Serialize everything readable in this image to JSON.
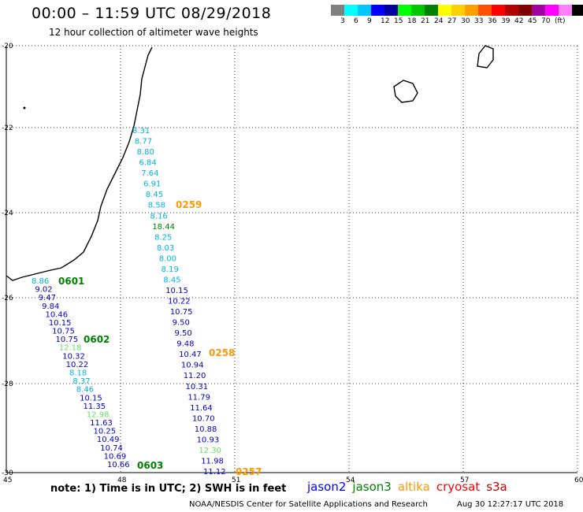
{
  "title": "00:00 – 11:59 UTC 08/29/2018",
  "subtitle": "12 hour collection of altimeter wave heights",
  "scale": {
    "colors": [
      "#808080",
      "#00ffff",
      "#00c8ff",
      "#0000ff",
      "#0000a0",
      "#00ff00",
      "#00c800",
      "#008000",
      "#ffff00",
      "#ffd000",
      "#ffa000",
      "#ff5000",
      "#ff0000",
      "#b00000",
      "#800000",
      "#a000a0",
      "#ff00ff",
      "#ff80ff",
      "#000000"
    ],
    "labels": [
      "3",
      "6",
      "9",
      "12",
      "15",
      "18",
      "21",
      "24",
      "27",
      "30",
      "33",
      "36",
      "39",
      "42",
      "45",
      "70",
      "(ft)"
    ]
  },
  "axes": {
    "lat_labels": [
      "-20",
      "-22",
      "-24",
      "-26",
      "-28",
      "-30"
    ],
    "lon_labels": [
      "45",
      "48",
      "51",
      "54",
      "57",
      "60"
    ]
  },
  "passes": [
    {
      "id": "0601",
      "color": "#008000"
    },
    {
      "id": "0602",
      "color": "#008000"
    },
    {
      "id": "0603",
      "color": "#008000"
    },
    {
      "id": "0259",
      "color": "#ff9900"
    },
    {
      "id": "0258",
      "color": "#ff9900"
    },
    {
      "id": "0257",
      "color": "#ff9900"
    }
  ],
  "tracks": {
    "east": [
      {
        "v": "8.31",
        "c": "#00b4dc"
      },
      {
        "v": "8.77",
        "c": "#00b4dc"
      },
      {
        "v": "8.80",
        "c": "#00b4dc"
      },
      {
        "v": "6.84",
        "c": "#00b4dc"
      },
      {
        "v": "7.64",
        "c": "#00b4dc"
      },
      {
        "v": "6.91",
        "c": "#00b4dc"
      },
      {
        "v": "8.45",
        "c": "#00b4dc"
      },
      {
        "v": "8.58",
        "c": "#00b4dc"
      },
      {
        "v": "8.16",
        "c": "#00b4dc"
      },
      {
        "v": "18.44",
        "c": "#008000"
      },
      {
        "v": "8.25",
        "c": "#00b4dc"
      },
      {
        "v": "8.03",
        "c": "#00b4dc"
      },
      {
        "v": "8.00",
        "c": "#00b4dc"
      },
      {
        "v": "8.19",
        "c": "#00b4dc"
      },
      {
        "v": "8.45",
        "c": "#00b4dc"
      },
      {
        "v": "10.15",
        "c": "#0000c8"
      },
      {
        "v": "10.22",
        "c": "#0000c8"
      },
      {
        "v": "10.75",
        "c": "#0000c8"
      },
      {
        "v": "9.50",
        "c": "#0000c8"
      },
      {
        "v": "9.50",
        "c": "#0000c8"
      },
      {
        "v": "9.48",
        "c": "#0000c8"
      },
      {
        "v": "10.47",
        "c": "#0000c8"
      },
      {
        "v": "10.94",
        "c": "#0000c8"
      },
      {
        "v": "11.20",
        "c": "#0000c8"
      },
      {
        "v": "10.31",
        "c": "#0000c8"
      },
      {
        "v": "11.79",
        "c": "#0000c8"
      },
      {
        "v": "11.64",
        "c": "#0000c8"
      },
      {
        "v": "10.70",
        "c": "#0000c8"
      },
      {
        "v": "10.88",
        "c": "#0000c8"
      },
      {
        "v": "10.93",
        "c": "#0000c8"
      },
      {
        "v": "12.30",
        "c": "#66dd66"
      },
      {
        "v": "11.98",
        "c": "#0000c8"
      },
      {
        "v": "11.12",
        "c": "#0000c8"
      }
    ],
    "west": [
      {
        "v": "8.86",
        "c": "#00b4dc"
      },
      {
        "v": "9.02",
        "c": "#0000c8"
      },
      {
        "v": "9.47",
        "c": "#0000c8"
      },
      {
        "v": "9.84",
        "c": "#0000c8"
      },
      {
        "v": "10.46",
        "c": "#0000c8"
      },
      {
        "v": "10.15",
        "c": "#0000c8"
      },
      {
        "v": "10.75",
        "c": "#0000c8"
      },
      {
        "v": "10.75",
        "c": "#0000c8"
      },
      {
        "v": "12.18",
        "c": "#66dd66"
      },
      {
        "v": "10.32",
        "c": "#0000c8"
      },
      {
        "v": "10.22",
        "c": "#0000c8"
      },
      {
        "v": "8.18",
        "c": "#00b4dc"
      },
      {
        "v": "8.37",
        "c": "#00b4dc"
      },
      {
        "v": "8.46",
        "c": "#00b4dc"
      },
      {
        "v": "10.15",
        "c": "#0000c8"
      },
      {
        "v": "11.35",
        "c": "#0000c8"
      },
      {
        "v": "12.98",
        "c": "#66dd66"
      },
      {
        "v": "11.63",
        "c": "#0000c8"
      },
      {
        "v": "10.25",
        "c": "#0000c8"
      },
      {
        "v": "10.49",
        "c": "#0000c8"
      },
      {
        "v": "10.74",
        "c": "#0000c8"
      },
      {
        "v": "10.69",
        "c": "#0000c8"
      },
      {
        "v": "10.66",
        "c": "#0000c8"
      }
    ]
  },
  "note": "note: 1) Time is in UTC; 2) SWH is in feet",
  "legend": [
    {
      "name": "jason2",
      "color": "#0000ff"
    },
    {
      "name": "jason3",
      "color": "#008000"
    },
    {
      "name": "altika",
      "color": "#ff9900"
    },
    {
      "name": "cryosat",
      "color": "#ff0000"
    },
    {
      "name": "s3a",
      "color": "#c00000"
    }
  ],
  "footer_left": "NOAA/NESDIS Center for Satellite Applications and Research",
  "footer_right": "Aug 30 12:27:17 UTC 2018"
}
